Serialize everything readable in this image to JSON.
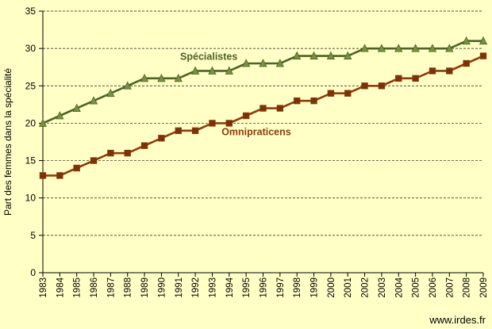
{
  "chart_data": {
    "type": "line",
    "ylabel": "Part des femmes dans la spécialité",
    "ylim": [
      0,
      35
    ],
    "yticks": [
      0,
      5,
      10,
      15,
      20,
      25,
      30,
      35
    ],
    "grid": true,
    "x": [
      "1983",
      "1984",
      "1985",
      "1986",
      "1987",
      "1988",
      "1989",
      "1990",
      "1991",
      "1992",
      "1993",
      "1994",
      "1995",
      "1996",
      "1997",
      "1998",
      "1999",
      "2000",
      "2001",
      "2002",
      "2003",
      "2004",
      "2005",
      "2006",
      "2007",
      "2008",
      "2009"
    ],
    "series": [
      {
        "name": "Spécialistes",
        "color": "#4f6228",
        "marker": "triangle",
        "marker_color": "#77933c",
        "values": [
          20,
          21,
          22,
          23,
          24,
          25,
          26,
          26,
          26,
          27,
          27,
          27,
          28,
          28,
          28,
          29,
          29,
          29,
          29,
          30,
          30,
          30,
          30,
          30,
          30,
          31,
          31
        ]
      },
      {
        "name": "Omnipraticens",
        "color": "#8b3d0c",
        "marker": "square",
        "marker_color": "#7a3208",
        "values": [
          13,
          13,
          14,
          15,
          16,
          16,
          17,
          18,
          19,
          19,
          20,
          20,
          21,
          22,
          22,
          23,
          23,
          24,
          24,
          25,
          25,
          26,
          26,
          27,
          27,
          28,
          29
        ]
      }
    ]
  },
  "source": "www.irdes.fr"
}
